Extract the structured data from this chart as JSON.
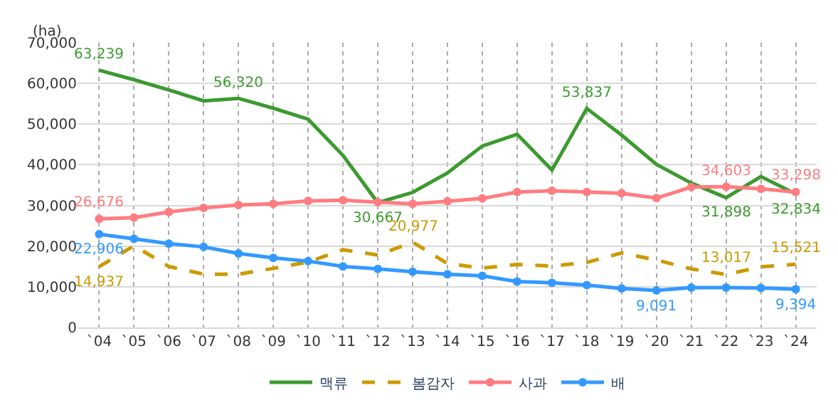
{
  "chart_data": {
    "type": "line",
    "ylabel": "(ha)",
    "categories": [
      "`04",
      "`05",
      "`06",
      "`07",
      "`08",
      "`09",
      "`10",
      "`11",
      "`12",
      "`13",
      "`14",
      "`15",
      "`16",
      "`17",
      "`18",
      "`19",
      "`20",
      "`21",
      "`22",
      "`23",
      "`24"
    ],
    "series": [
      {
        "name": "맥류",
        "color": "#3c9a2f",
        "marker": "none",
        "line_style": "solid",
        "values": [
          63239,
          60900,
          58400,
          55700,
          56320,
          53900,
          51200,
          42300,
          30667,
          33200,
          38000,
          44600,
          47500,
          38700,
          53837,
          47300,
          40100,
          35500,
          31898,
          37100,
          32834
        ],
        "value_labels": [
          "63,239",
          null,
          null,
          null,
          "56,320",
          null,
          null,
          null,
          "30,667",
          null,
          null,
          null,
          null,
          null,
          "53,837",
          null,
          null,
          null,
          "31,898",
          null,
          "32,834"
        ]
      },
      {
        "name": "봄감자",
        "color": "#cc9900",
        "marker": "none",
        "line_style": "dashed",
        "values": [
          14937,
          20100,
          15000,
          13100,
          13100,
          14500,
          16100,
          19100,
          17800,
          20977,
          15700,
          14600,
          15500,
          15100,
          16000,
          18300,
          16600,
          14400,
          13017,
          14900,
          15521
        ],
        "value_labels": [
          "14,937",
          null,
          null,
          null,
          null,
          null,
          null,
          null,
          null,
          "20,977",
          null,
          null,
          null,
          null,
          null,
          null,
          null,
          null,
          "13,017",
          null,
          "15,521"
        ]
      },
      {
        "name": "사과",
        "color": "#ff7c80",
        "marker": "circle",
        "line_style": "solid",
        "values": [
          26676,
          27000,
          28400,
          29400,
          30100,
          30400,
          31100,
          31300,
          30800,
          30400,
          31000,
          31700,
          33300,
          33600,
          33300,
          33000,
          31800,
          34500,
          34603,
          34100,
          33298
        ],
        "value_labels": [
          "26,676",
          null,
          null,
          null,
          null,
          null,
          null,
          null,
          null,
          null,
          null,
          null,
          null,
          null,
          null,
          null,
          null,
          null,
          "34,603",
          null,
          "33,298"
        ]
      },
      {
        "name": "배",
        "color": "#3399ff",
        "marker": "circle",
        "line_style": "solid",
        "values": [
          22906,
          21800,
          20600,
          19800,
          18200,
          17100,
          16300,
          15000,
          14400,
          13700,
          13100,
          12700,
          11300,
          11000,
          10400,
          9600,
          9091,
          9800,
          9800,
          9700,
          9394
        ],
        "value_labels": [
          "22,906",
          null,
          null,
          null,
          null,
          null,
          null,
          null,
          null,
          null,
          null,
          null,
          null,
          null,
          null,
          null,
          "9,091",
          null,
          null,
          null,
          "9,394"
        ]
      }
    ],
    "ylim": [
      0,
      70000
    ],
    "yticks": [
      {
        "value": 0,
        "label": "0"
      },
      {
        "value": 10000,
        "label": "10,000"
      },
      {
        "value": 20000,
        "label": "20,000"
      },
      {
        "value": 30000,
        "label": "30,000"
      },
      {
        "value": 40000,
        "label": "40,000"
      },
      {
        "value": 50000,
        "label": "50,000"
      },
      {
        "value": 60000,
        "label": "60,000"
      },
      {
        "value": 70000,
        "label": "70,000"
      }
    ],
    "grid": true,
    "legend": "bottom"
  }
}
